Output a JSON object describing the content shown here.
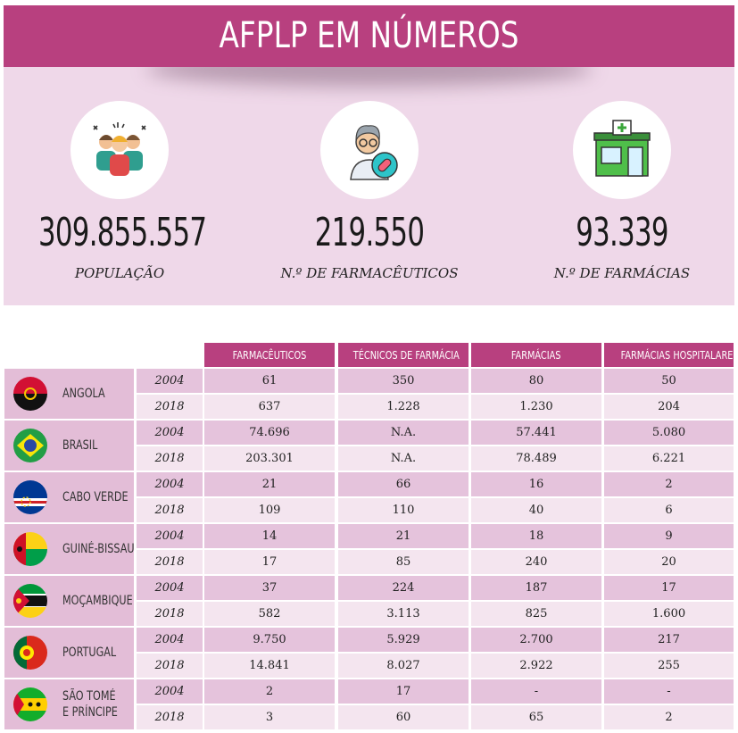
{
  "title": "AFPLP EM NÚMEROS",
  "stats": [
    {
      "value": "309.855.557",
      "label": "POPULAÇÃO",
      "icon": "people-group-icon"
    },
    {
      "value": "219.550",
      "label": "N.º DE FARMACÊUTICOS",
      "icon": "pharmacist-icon"
    },
    {
      "value": "93.339",
      "label": "N.º DE FARMÁCIAS",
      "icon": "pharmacy-building-icon"
    }
  ],
  "table": {
    "columns": [
      "FARMACÊUTICOS",
      "TÉCNICOS DE FARMÁCIA",
      "FARMÁCIAS",
      "FARMÁCIAS HOSPITALARES"
    ],
    "countries": [
      {
        "name": [
          "ANGOLA"
        ],
        "flag": "angola-flag-icon",
        "rows": [
          {
            "year": "2004",
            "values": [
              "61",
              "350",
              "80",
              "50"
            ]
          },
          {
            "year": "2018",
            "values": [
              "637",
              "1.228",
              "1.230",
              "204"
            ]
          }
        ]
      },
      {
        "name": [
          "BRASIL"
        ],
        "flag": "brazil-flag-icon",
        "rows": [
          {
            "year": "2004",
            "values": [
              "74.696",
              "N.A.",
              "57.441",
              "5.080"
            ]
          },
          {
            "year": "2018",
            "values": [
              "203.301",
              "N.A.",
              "78.489",
              "6.221"
            ]
          }
        ]
      },
      {
        "name": [
          "CABO VERDE"
        ],
        "flag": "cape-verde-flag-icon",
        "rows": [
          {
            "year": "2004",
            "values": [
              "21",
              "66",
              "16",
              "2"
            ]
          },
          {
            "year": "2018",
            "values": [
              "109",
              "110",
              "40",
              "6"
            ]
          }
        ]
      },
      {
        "name": [
          "GUINÉ-BISSAU"
        ],
        "flag": "guinea-bissau-flag-icon",
        "rows": [
          {
            "year": "2004",
            "values": [
              "14",
              "21",
              "18",
              "9"
            ]
          },
          {
            "year": "2018",
            "values": [
              "17",
              "85",
              "240",
              "20"
            ]
          }
        ]
      },
      {
        "name": [
          "MOÇAMBIQUE"
        ],
        "flag": "mozambique-flag-icon",
        "rows": [
          {
            "year": "2004",
            "values": [
              "37",
              "224",
              "187",
              "17"
            ]
          },
          {
            "year": "2018",
            "values": [
              "582",
              "3.113",
              "825",
              "1.600"
            ]
          }
        ]
      },
      {
        "name": [
          "PORTUGAL"
        ],
        "flag": "portugal-flag-icon",
        "rows": [
          {
            "year": "2004",
            "values": [
              "9.750",
              "5.929",
              "2.700",
              "217"
            ]
          },
          {
            "year": "2018",
            "values": [
              "14.841",
              "8.027",
              "2.922",
              "255"
            ]
          }
        ]
      },
      {
        "name": [
          "SÃO TOMÉ",
          "E PRÍNCIPE"
        ],
        "flag": "sao-tome-flag-icon",
        "rows": [
          {
            "year": "2004",
            "values": [
              "2",
              "17",
              "-",
              "-"
            ]
          },
          {
            "year": "2018",
            "values": [
              "3",
              "60",
              "65",
              "2"
            ]
          }
        ]
      }
    ]
  }
}
